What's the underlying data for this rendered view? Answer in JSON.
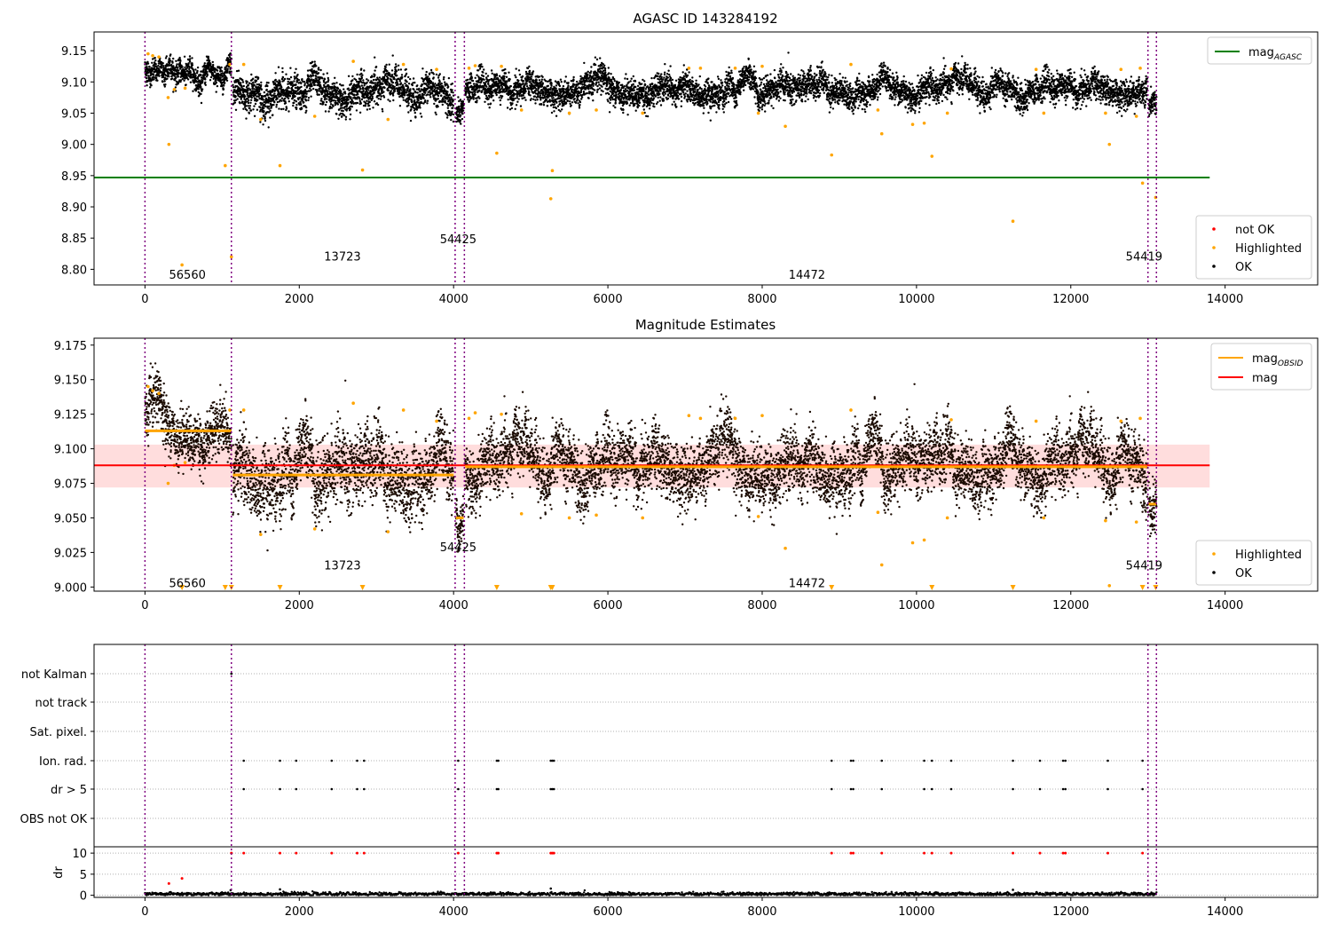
{
  "chart_data": [
    {
      "type": "scatter",
      "title": "AGASC ID 143284192",
      "xlabel": "",
      "ylabel": "",
      "xlim": [
        -660,
        15200
      ],
      "ylim": [
        8.775,
        9.18
      ],
      "xticks": [
        0,
        2000,
        4000,
        6000,
        8000,
        10000,
        12000,
        14000
      ],
      "xtick_labels": [
        "0",
        "2000",
        "4000",
        "6000",
        "8000",
        "10000",
        "12000",
        "14000"
      ],
      "yticks": [
        8.8,
        8.85,
        8.9,
        8.95,
        9.0,
        9.05,
        9.1,
        9.15
      ],
      "ytick_labels": [
        "8.80",
        "8.85",
        "8.90",
        "8.95",
        "9.00",
        "9.05",
        "9.10",
        "9.15"
      ],
      "grid": false,
      "obs_boundaries": [
        0,
        1120,
        4020,
        4140,
        13000,
        13110
      ],
      "obsid_labels": [
        {
          "text": "56560",
          "x": 550,
          "y": 8.792
        },
        {
          "text": "13723",
          "x": 2560,
          "y": 8.821
        },
        {
          "text": "54425",
          "x": 4060,
          "y": 8.849
        },
        {
          "text": "14472",
          "x": 8580,
          "y": 8.792
        },
        {
          "text": "54419",
          "x": 12950,
          "y": 8.821
        }
      ],
      "lines": [
        {
          "name": "mag_AGASC",
          "color": "#008000",
          "x": [
            -660,
            13800
          ],
          "y": [
            8.947,
            8.947
          ]
        }
      ],
      "ok_segments": [
        {
          "x": [
            0,
            1120
          ],
          "mean": 9.115,
          "spread": 0.009,
          "slope": -0.01
        },
        {
          "x": [
            1140,
            4000
          ],
          "mean": 9.082,
          "spread": 0.013,
          "slope": 0.0
        },
        {
          "x": [
            4030,
            4130
          ],
          "mean": 9.05,
          "spread": 0.009,
          "slope": 0.0
        },
        {
          "x": [
            4150,
            12990
          ],
          "mean": 9.088,
          "spread": 0.011,
          "slope": 0.0
        },
        {
          "x": [
            13010,
            13110
          ],
          "mean": 9.062,
          "spread": 0.009,
          "slope": 0.0
        }
      ],
      "highlighted_points": [
        [
          40,
          9.145
        ],
        [
          100,
          9.142
        ],
        [
          180,
          9.14
        ],
        [
          300,
          9.075
        ],
        [
          310,
          9.0
        ],
        [
          380,
          9.088
        ],
        [
          480,
          8.807
        ],
        [
          520,
          9.09
        ],
        [
          1040,
          8.966
        ],
        [
          1100,
          9.128
        ],
        [
          1120,
          8.82
        ],
        [
          1280,
          9.128
        ],
        [
          1500,
          9.04
        ],
        [
          1750,
          8.966
        ],
        [
          2200,
          9.045
        ],
        [
          2700,
          9.133
        ],
        [
          2820,
          8.959
        ],
        [
          3150,
          9.04
        ],
        [
          3350,
          9.128
        ],
        [
          3780,
          9.12
        ],
        [
          4200,
          9.122
        ],
        [
          4280,
          9.126
        ],
        [
          4560,
          8.986
        ],
        [
          4620,
          9.125
        ],
        [
          4880,
          9.055
        ],
        [
          5260,
          8.913
        ],
        [
          5280,
          8.958
        ],
        [
          5500,
          9.05
        ],
        [
          5850,
          9.055
        ],
        [
          6450,
          9.05
        ],
        [
          7050,
          9.122
        ],
        [
          7200,
          9.122
        ],
        [
          7650,
          9.122
        ],
        [
          7950,
          9.05
        ],
        [
          8000,
          9.125
        ],
        [
          8300,
          9.029
        ],
        [
          8900,
          8.983
        ],
        [
          9150,
          9.128
        ],
        [
          9550,
          9.017
        ],
        [
          9500,
          9.055
        ],
        [
          9950,
          9.032
        ],
        [
          10100,
          9.034
        ],
        [
          10200,
          8.981
        ],
        [
          10400,
          9.05
        ],
        [
          10450,
          9.121
        ],
        [
          11250,
          8.877
        ],
        [
          11550,
          9.12
        ],
        [
          11650,
          9.05
        ],
        [
          12450,
          9.05
        ],
        [
          12500,
          9.0
        ],
        [
          12650,
          9.12
        ],
        [
          12850,
          9.045
        ],
        [
          12900,
          9.122
        ],
        [
          12930,
          8.938
        ],
        [
          13100,
          8.915
        ]
      ],
      "legend_mag": {
        "position": "upper right",
        "entries": [
          {
            "label": "mag",
            "sub": "AGASC",
            "color": "#008000"
          }
        ]
      },
      "legend_points": {
        "position": "lower right",
        "entries": [
          {
            "label": "not OK",
            "color": "#ff0000"
          },
          {
            "label": "Highlighted",
            "color": "#ffa500"
          },
          {
            "label": "OK",
            "color": "#000000"
          }
        ]
      }
    },
    {
      "type": "scatter",
      "title": "Magnitude Estimates",
      "xlabel": "",
      "ylabel": "",
      "xlim": [
        -660,
        15200
      ],
      "ylim": [
        8.997,
        9.18
      ],
      "xticks": [
        0,
        2000,
        4000,
        6000,
        8000,
        10000,
        12000,
        14000
      ],
      "xtick_labels": [
        "0",
        "2000",
        "4000",
        "6000",
        "8000",
        "10000",
        "12000",
        "14000"
      ],
      "yticks": [
        9.0,
        9.025,
        9.05,
        9.075,
        9.1,
        9.125,
        9.15,
        9.175
      ],
      "ytick_labels": [
        "9.000",
        "9.025",
        "9.050",
        "9.075",
        "9.100",
        "9.125",
        "9.150",
        "9.175"
      ],
      "grid": false,
      "obs_boundaries": [
        0,
        1120,
        4020,
        4140,
        13000,
        13110
      ],
      "obsid_labels": [
        {
          "text": "56560",
          "x": 550,
          "y": 9.003
        },
        {
          "text": "13723",
          "x": 2560,
          "y": 9.016
        },
        {
          "text": "54425",
          "x": 4060,
          "y": 9.029
        },
        {
          "text": "14472",
          "x": 8580,
          "y": 9.003
        },
        {
          "text": "54419",
          "x": 12950,
          "y": 9.016
        }
      ],
      "mag_band": {
        "x": [
          -660,
          13800
        ],
        "y": [
          9.072,
          9.103
        ],
        "color": "#ffb3b3"
      },
      "lines": [
        {
          "name": "mag",
          "color": "#ff0000",
          "x": [
            -660,
            13800
          ],
          "y": [
            9.088,
            9.088
          ]
        }
      ],
      "obsid_mag_segments": [
        {
          "x": [
            0,
            1120
          ],
          "y": 9.113
        },
        {
          "x": [
            1140,
            4000
          ],
          "y": 9.081
        },
        {
          "x": [
            4030,
            4130
          ],
          "y": 9.05
        },
        {
          "x": [
            4150,
            12990
          ],
          "y": 9.087
        },
        {
          "x": [
            13010,
            13110
          ],
          "y": 9.06
        }
      ],
      "ok_segments": [
        {
          "x": [
            0,
            1120
          ],
          "mean": 9.115,
          "spread": 0.009,
          "slope": -0.01
        },
        {
          "x": [
            1140,
            4000
          ],
          "mean": 9.082,
          "spread": 0.013,
          "slope": 0.0
        },
        {
          "x": [
            4030,
            4130
          ],
          "mean": 9.05,
          "spread": 0.009,
          "slope": 0.0
        },
        {
          "x": [
            4150,
            12990
          ],
          "mean": 9.088,
          "spread": 0.011,
          "slope": 0.0
        },
        {
          "x": [
            13010,
            13110
          ],
          "mean": 9.062,
          "spread": 0.009,
          "slope": 0.0
        }
      ],
      "highlighted_points": [
        [
          40,
          9.145
        ],
        [
          100,
          9.142
        ],
        [
          180,
          9.14
        ],
        [
          300,
          9.075
        ],
        [
          380,
          9.088
        ],
        [
          520,
          9.09
        ],
        [
          1100,
          9.128
        ],
        [
          1280,
          9.128
        ],
        [
          1500,
          9.038
        ],
        [
          2200,
          9.042
        ],
        [
          2700,
          9.133
        ],
        [
          3150,
          9.04
        ],
        [
          3350,
          9.128
        ],
        [
          3780,
          9.12
        ],
        [
          4200,
          9.122
        ],
        [
          4280,
          9.126
        ],
        [
          4620,
          9.125
        ],
        [
          4880,
          9.053
        ],
        [
          5500,
          9.05
        ],
        [
          5850,
          9.052
        ],
        [
          6450,
          9.05
        ],
        [
          7050,
          9.124
        ],
        [
          7200,
          9.122
        ],
        [
          7650,
          9.122
        ],
        [
          7950,
          9.051
        ],
        [
          8000,
          9.124
        ],
        [
          8300,
          9.028
        ],
        [
          9150,
          9.128
        ],
        [
          9500,
          9.054
        ],
        [
          9550,
          9.016
        ],
        [
          9950,
          9.032
        ],
        [
          10100,
          9.034
        ],
        [
          10400,
          9.05
        ],
        [
          10450,
          9.121
        ],
        [
          11550,
          9.12
        ],
        [
          11650,
          9.05
        ],
        [
          12450,
          9.048
        ],
        [
          12500,
          9.001
        ],
        [
          12650,
          9.12
        ],
        [
          12850,
          9.047
        ],
        [
          12900,
          9.122
        ]
      ],
      "offscale_markers_x": [
        480,
        1040,
        1120,
        1750,
        2820,
        4560,
        5260,
        5280,
        8900,
        10200,
        11250,
        12930,
        13100
      ],
      "legend_mag": {
        "position": "upper right",
        "entries": [
          {
            "label": "mag",
            "sub": "OBSID",
            "color": "#ffa500"
          },
          {
            "label": "mag",
            "sub": "",
            "color": "#ff0000"
          }
        ]
      },
      "legend_points": {
        "position": "lower right",
        "entries": [
          {
            "label": "Highlighted",
            "color": "#ffa500"
          },
          {
            "label": "OK",
            "color": "#000000"
          }
        ]
      }
    },
    {
      "type": "scatter",
      "title": "",
      "xlabel": "",
      "ylabel": "dr",
      "xlim": [
        -660,
        15200
      ],
      "xticks": [
        0,
        2000,
        4000,
        6000,
        8000,
        10000,
        12000,
        14000
      ],
      "xtick_labels": [
        "0",
        "2000",
        "4000",
        "6000",
        "8000",
        "10000",
        "12000",
        "14000"
      ],
      "flag_rows": [
        "not Kalman",
        "not track",
        "Sat. pixel.",
        "Ion. rad.",
        "dr > 5",
        "OBS not OK"
      ],
      "flag_events": {
        "not Kalman": [
          1120
        ],
        "not track": [],
        "Sat. pixel.": [],
        "Ion. rad.": [
          1280,
          1750,
          1960,
          2420,
          2750,
          2840,
          4060,
          4560,
          4580,
          5260,
          5280,
          5300,
          8900,
          9150,
          9180,
          9550,
          10100,
          10200,
          10450,
          11250,
          11600,
          11900,
          11930,
          12480,
          12930
        ],
        "dr > 5": [
          1280,
          1750,
          1960,
          2420,
          2750,
          2840,
          4060,
          4560,
          4580,
          5260,
          5280,
          5300,
          8900,
          9150,
          9180,
          9550,
          10100,
          10200,
          10450,
          11250,
          11600,
          11900,
          11930,
          12480,
          12930
        ],
        "OBS not OK": []
      },
      "dr_ylim": [
        -0.5,
        11.5
      ],
      "dr_yticks": [
        0,
        5,
        10
      ],
      "dr_ytick_labels": [
        "0",
        "5",
        "10"
      ],
      "dr_red_points": [
        [
          310,
          2.8
        ],
        [
          480,
          4.0
        ],
        [
          1120,
          10
        ],
        [
          1280,
          10
        ],
        [
          1750,
          10
        ],
        [
          1960,
          10
        ],
        [
          2420,
          10
        ],
        [
          2750,
          10
        ],
        [
          2840,
          10
        ],
        [
          4060,
          10
        ],
        [
          4560,
          10
        ],
        [
          4580,
          10
        ],
        [
          5260,
          10
        ],
        [
          5280,
          10
        ],
        [
          5300,
          10
        ],
        [
          8900,
          10
        ],
        [
          9150,
          10
        ],
        [
          9180,
          10
        ],
        [
          9550,
          10
        ],
        [
          10100,
          10
        ],
        [
          10200,
          10
        ],
        [
          10450,
          10
        ],
        [
          11250,
          10
        ],
        [
          11600,
          10
        ],
        [
          11900,
          10
        ],
        [
          11930,
          10
        ],
        [
          12480,
          10
        ],
        [
          12930,
          10
        ]
      ],
      "dr_black_points": [
        [
          1750,
          1.4
        ],
        [
          5260,
          1.6
        ],
        [
          11250,
          1.3
        ],
        [
          1110,
          1.2
        ]
      ],
      "dr_baseline": {
        "x": [
          0,
          13110
        ],
        "mean": 0.3,
        "spread": 0.2
      },
      "obs_boundaries": [
        0,
        1120,
        4020,
        4140,
        13000,
        13110
      ]
    }
  ]
}
